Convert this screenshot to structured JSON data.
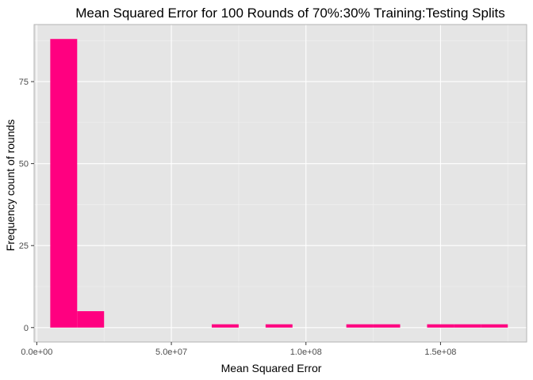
{
  "chart_data": {
    "type": "bar",
    "subtype": "histogram",
    "title": "Mean Squared Error for 100 Rounds of 70%:30% Training:Testing Splits",
    "xlabel": "Mean Squared Error",
    "ylabel": "Frequency count of rounds",
    "bin_width": 10000000,
    "bins": [
      {
        "start": 5000000,
        "end": 15000000,
        "count": 88
      },
      {
        "start": 15000000,
        "end": 25000000,
        "count": 5
      },
      {
        "start": 65000000,
        "end": 75000000,
        "count": 1
      },
      {
        "start": 85000000,
        "end": 95000000,
        "count": 1
      },
      {
        "start": 115000000,
        "end": 125000000,
        "count": 1
      },
      {
        "start": 125000000,
        "end": 135000000,
        "count": 1
      },
      {
        "start": 145000000,
        "end": 155000000,
        "count": 1
      },
      {
        "start": 155000000,
        "end": 165000000,
        "count": 1
      },
      {
        "start": 165000000,
        "end": 175000000,
        "count": 1
      }
    ],
    "xlim": [
      -1000000,
      182000000
    ],
    "ylim": [
      -4.4,
      92.4
    ],
    "x_ticks": [
      {
        "value": 0,
        "label": "0.0e+00"
      },
      {
        "value": 50000000,
        "label": "5.0e+07"
      },
      {
        "value": 100000000,
        "label": "1.0e+08"
      },
      {
        "value": 150000000,
        "label": "1.5e+08"
      }
    ],
    "y_ticks": [
      {
        "value": 0,
        "label": "0"
      },
      {
        "value": 25,
        "label": "25"
      },
      {
        "value": 50,
        "label": "50"
      },
      {
        "value": 75,
        "label": "75"
      }
    ],
    "grid": true,
    "colors": {
      "bar": "#ff0080",
      "panel": "#e5e5e5",
      "grid_major": "#ffffff",
      "grid_minor": "#f2f2f2",
      "tick_text": "#4d4d4d"
    }
  }
}
